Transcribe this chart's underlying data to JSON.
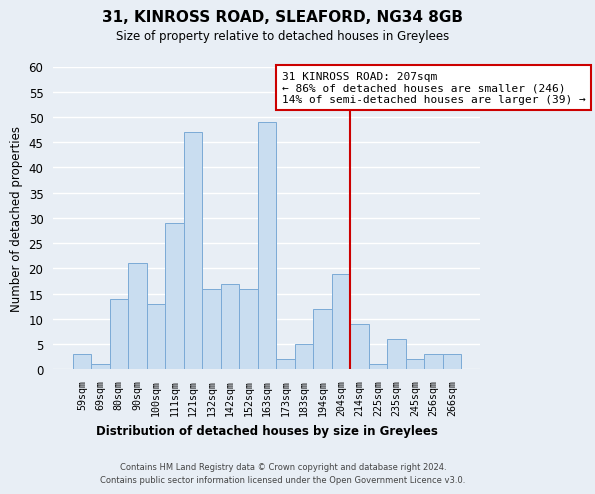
{
  "title": "31, KINROSS ROAD, SLEAFORD, NG34 8GB",
  "subtitle": "Size of property relative to detached houses in Greylees",
  "xlabel": "Distribution of detached houses by size in Greylees",
  "ylabel": "Number of detached properties",
  "categories": [
    "59sqm",
    "69sqm",
    "80sqm",
    "90sqm",
    "100sqm",
    "111sqm",
    "121sqm",
    "132sqm",
    "142sqm",
    "152sqm",
    "163sqm",
    "173sqm",
    "183sqm",
    "194sqm",
    "204sqm",
    "214sqm",
    "225sqm",
    "235sqm",
    "245sqm",
    "256sqm",
    "266sqm"
  ],
  "values": [
    3,
    1,
    14,
    21,
    13,
    29,
    47,
    16,
    17,
    16,
    49,
    2,
    5,
    12,
    19,
    9,
    1,
    6,
    2,
    3,
    3
  ],
  "bar_color": "#c9ddf0",
  "bar_edge_color": "#7baad6",
  "background_color": "#e8eef5",
  "plot_bg_color": "#e8eef5",
  "grid_color": "#ffffff",
  "ylim": [
    0,
    60
  ],
  "yticks": [
    0,
    5,
    10,
    15,
    20,
    25,
    30,
    35,
    40,
    45,
    50,
    55,
    60
  ],
  "annotation_line_index": 14,
  "annotation_line_color": "#cc0000",
  "annotation_box_title": "31 KINROSS ROAD: 207sqm",
  "annotation_line1": "← 86% of detached houses are smaller (246)",
  "annotation_line2": "14% of semi-detached houses are larger (39) →",
  "annotation_box_edge_color": "#cc0000",
  "footer_line1": "Contains HM Land Registry data © Crown copyright and database right 2024.",
  "footer_line2": "Contains public sector information licensed under the Open Government Licence v3.0."
}
